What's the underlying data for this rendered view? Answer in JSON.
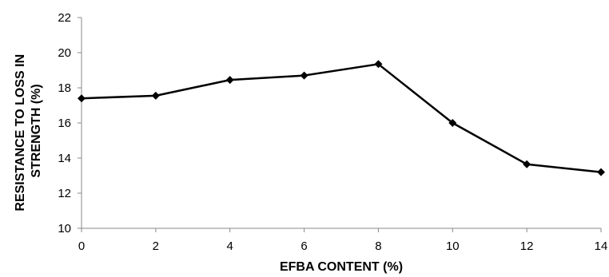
{
  "chart_data": {
    "type": "line",
    "title": "",
    "xlabel": "EFBA CONTENT (%)",
    "ylabel_lines": [
      "RESISTANCE TO LOSS IN",
      "STRENGTH (%)"
    ],
    "xlim": [
      0,
      14
    ],
    "ylim": [
      10,
      22
    ],
    "xticks": [
      0,
      2,
      4,
      6,
      8,
      10,
      12,
      14
    ],
    "yticks": [
      10,
      12,
      14,
      16,
      18,
      20,
      22
    ],
    "grid": false,
    "legend": "none",
    "series": [
      {
        "x": [
          0,
          2,
          4,
          6,
          8,
          10,
          12,
          14
        ],
        "y": [
          17.4,
          17.55,
          18.45,
          18.7,
          19.35,
          16.0,
          13.65,
          13.2
        ],
        "color": "#000000",
        "marker": "diamond"
      }
    ]
  }
}
